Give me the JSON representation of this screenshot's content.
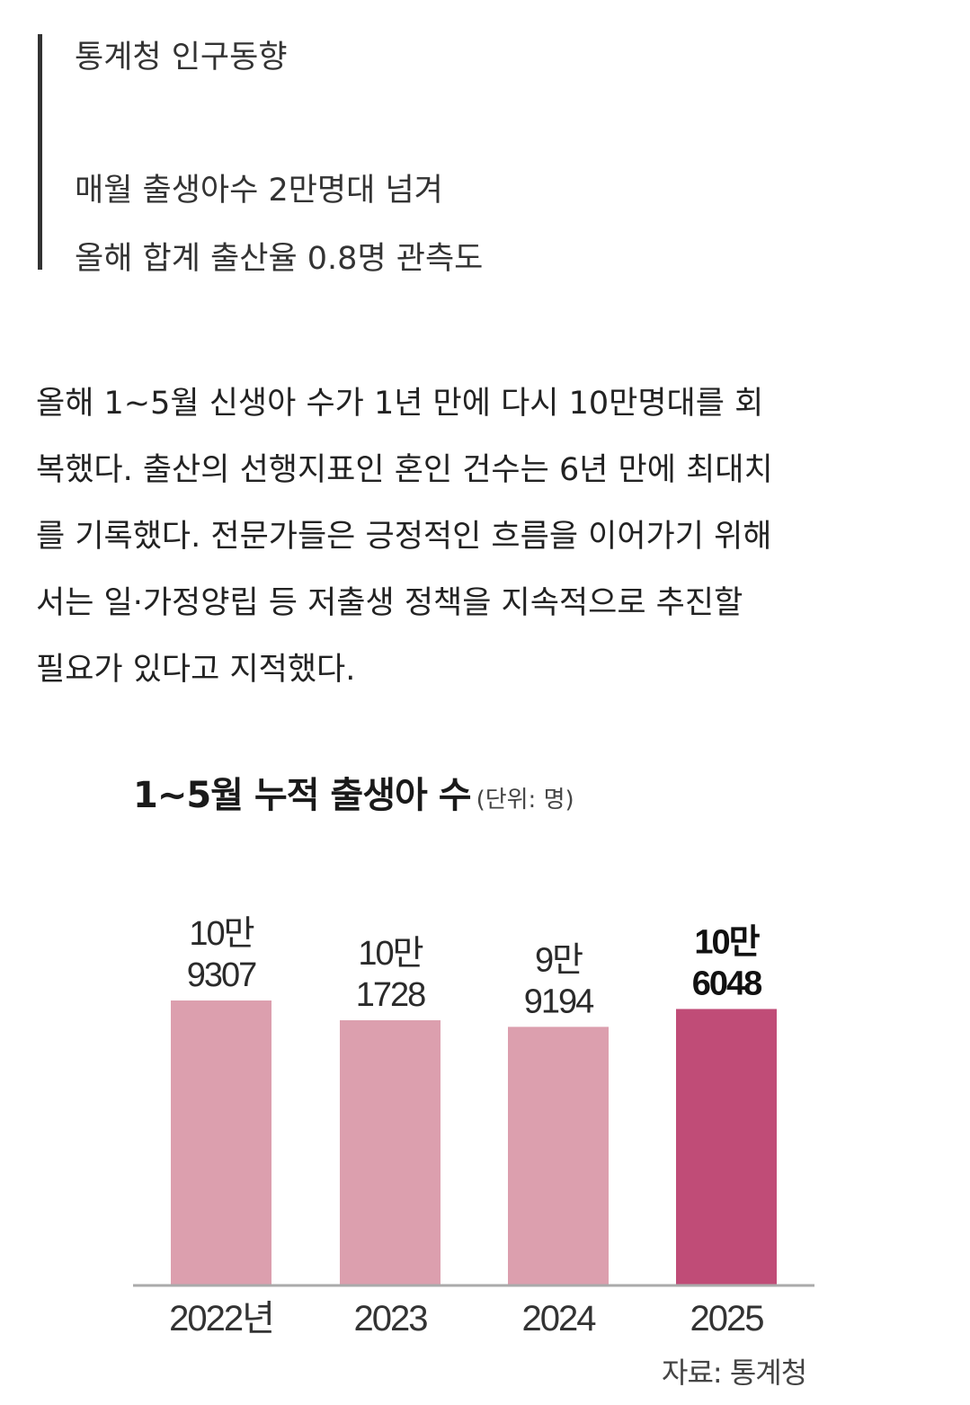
{
  "summary": {
    "lines": [
      "통계청 인구동향",
      "매월 출생아수 2만명대 넘겨",
      "올해 합계 출산율 0.8명 관측도"
    ]
  },
  "body": {
    "lines": [
      "올해 1~5월 신생아 수가 1년 만에 다시 10만명대를 회",
      "복했다. 출산의 선행지표인 혼인 건수는 6년 만에 최대치",
      "를 기록했다. 전문가들은 긍정적인 흐름을 이어가기 위해",
      "서는 일·가정양립 등 저출생 정책을 지속적으로 추진할",
      "필요가 있다고 지적했다."
    ]
  },
  "chart_data": {
    "type": "bar",
    "title": "1~5월 누적 출생아 수",
    "unit_note": "(단위: 명)",
    "categories": [
      "2022년",
      "2023",
      "2024",
      "2025"
    ],
    "values": [
      109307,
      101728,
      99194,
      106048
    ],
    "value_labels": [
      [
        "10만",
        "9307"
      ],
      [
        "10만",
        "1728"
      ],
      [
        "9만",
        "9194"
      ],
      [
        "10만",
        "6048"
      ]
    ],
    "highlight_index": 3,
    "colors": {
      "bar": "#dc9fae",
      "highlight": "#c04c77",
      "baseline": "#aaaaaa"
    },
    "source": "자료: 통계청"
  }
}
